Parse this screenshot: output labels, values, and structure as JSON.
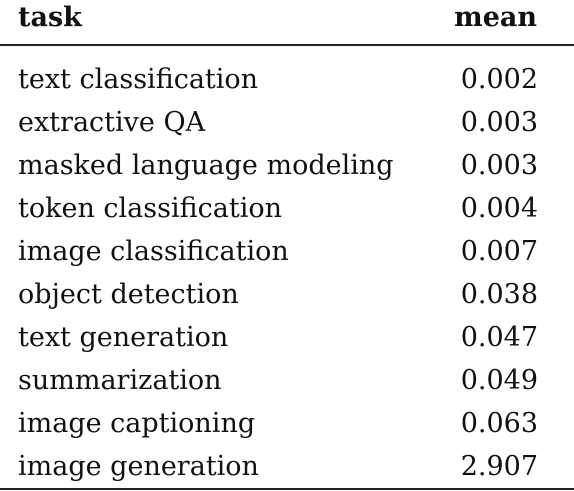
{
  "table": {
    "headers": {
      "task": "task",
      "mean": "mean"
    },
    "rows": [
      {
        "task": "text classification",
        "mean": "0.002"
      },
      {
        "task": "extractive QA",
        "mean": "0.003"
      },
      {
        "task": "masked language modeling",
        "mean": "0.003"
      },
      {
        "task": "token classification",
        "mean": "0.004"
      },
      {
        "task": "image classification",
        "mean": "0.007"
      },
      {
        "task": "object detection",
        "mean": "0.038"
      },
      {
        "task": "text generation",
        "mean": "0.047"
      },
      {
        "task": "summarization",
        "mean": "0.049"
      },
      {
        "task": "image captioning",
        "mean": "0.063"
      },
      {
        "task": "image generation",
        "mean": "2.907"
      }
    ]
  }
}
